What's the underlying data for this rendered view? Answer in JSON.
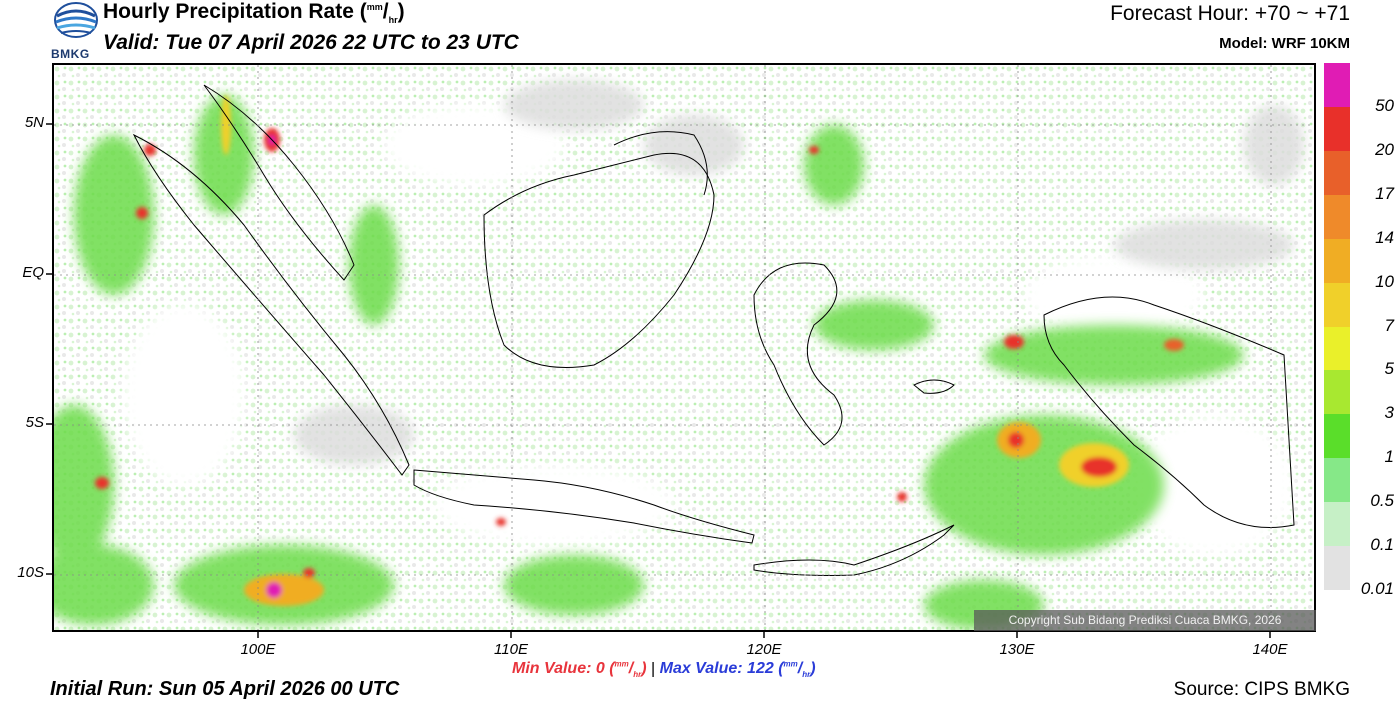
{
  "header": {
    "title_main": "Hourly Precipitation Rate (",
    "title_unit_top": "mm",
    "title_unit_slash": "/",
    "title_unit_bottom": "hr",
    "title_close": ")",
    "valid": "Valid: Tue 07 April 2026 22 UTC to 23 UTC",
    "forecast_hour": "Forecast Hour: +70 ~ +71",
    "model": "Model: WRF 10KM",
    "logo_text": "BMKG"
  },
  "map": {
    "lat_labels": [
      "5N",
      "EQ",
      "5S",
      "10S"
    ],
    "lon_labels": [
      "100E",
      "110E",
      "120E",
      "130E",
      "140E"
    ],
    "copyright": "Copyright Sub Bidang Prediksi Cuaca BMKG, 2026"
  },
  "colorbar": {
    "labels": [
      "50",
      "20",
      "17",
      "14",
      "10",
      "7",
      "5",
      "3",
      "1",
      "0.5",
      "0.1",
      "0.01"
    ],
    "colors": [
      "#e01cb4",
      "#e8302a",
      "#e8602a",
      "#ef8a2a",
      "#f0ad24",
      "#f0d02a",
      "#eaf02a",
      "#a8e830",
      "#5ade2a",
      "#86e888",
      "#c6f0c6",
      "#e2e2e2"
    ]
  },
  "footer": {
    "min_label": "Min Value:   0 (",
    "min_unit_top": "mm",
    "min_unit_slash": "/",
    "min_unit_bottom": "hr",
    "min_close": ")",
    "separator": "|",
    "max_label": "Max Value: 122 (",
    "max_unit_top": "mm",
    "max_unit_slash": "/",
    "max_unit_bottom": "hr",
    "max_close": ")",
    "initial_run": "Initial Run: Sun 05 April 2026 00 UTC",
    "source": "Source: CIPS BMKG"
  }
}
